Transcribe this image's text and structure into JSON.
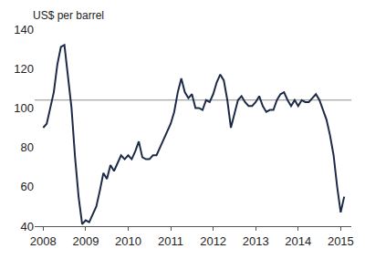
{
  "chart_data": {
    "type": "line",
    "ylabel": "US$ per barrel",
    "x": [
      2008,
      2008.083,
      2008.167,
      2008.25,
      2008.333,
      2008.417,
      2008.5,
      2008.583,
      2008.667,
      2008.75,
      2008.833,
      2008.917,
      2009,
      2009.083,
      2009.167,
      2009.25,
      2009.333,
      2009.417,
      2009.5,
      2009.583,
      2009.667,
      2009.75,
      2009.833,
      2009.917,
      2010,
      2010.083,
      2010.167,
      2010.25,
      2010.333,
      2010.417,
      2010.5,
      2010.583,
      2010.667,
      2010.75,
      2010.833,
      2010.917,
      2011,
      2011.083,
      2011.167,
      2011.25,
      2011.333,
      2011.417,
      2011.5,
      2011.583,
      2011.667,
      2011.75,
      2011.833,
      2011.917,
      2012,
      2012.083,
      2012.167,
      2012.25,
      2012.333,
      2012.417,
      2012.5,
      2012.583,
      2012.667,
      2012.75,
      2012.833,
      2012.917,
      2013,
      2013.083,
      2013.167,
      2013.25,
      2013.333,
      2013.417,
      2013.5,
      2013.583,
      2013.667,
      2013.75,
      2013.833,
      2013.917,
      2014,
      2014.083,
      2014.167,
      2014.25,
      2014.333,
      2014.417,
      2014.5,
      2014.583,
      2014.667,
      2014.75,
      2014.833,
      2014.917,
      2015,
      2015.083
    ],
    "values": [
      90,
      92,
      100,
      108,
      122,
      131,
      132,
      115,
      100,
      75,
      55,
      41,
      43,
      42,
      46,
      50,
      58,
      67,
      64,
      71,
      68,
      72,
      76,
      74,
      76,
      74,
      78,
      83,
      75,
      74,
      74,
      76,
      76,
      80,
      84,
      88,
      92,
      98,
      108,
      115,
      108,
      105,
      107,
      100,
      100,
      99,
      104,
      103,
      107,
      113,
      117,
      114,
      104,
      90,
      97,
      104,
      106,
      103,
      101,
      101,
      103,
      106,
      101,
      98,
      99,
      99,
      104,
      107,
      108,
      104,
      101,
      104,
      101,
      104,
      103,
      103,
      105,
      107,
      104,
      99,
      94,
      86,
      76,
      60,
      47,
      55
    ],
    "color": "#1c2a48",
    "reference_line": 104,
    "xlim": [
      2007.8,
      2015.25
    ],
    "xticks": [
      2008,
      2009,
      2010,
      2011,
      2012,
      2013,
      2014,
      2015
    ],
    "ylim": [
      40,
      140
    ],
    "yticks": [
      40,
      60,
      80,
      100,
      120,
      140
    ],
    "grid": false
  }
}
